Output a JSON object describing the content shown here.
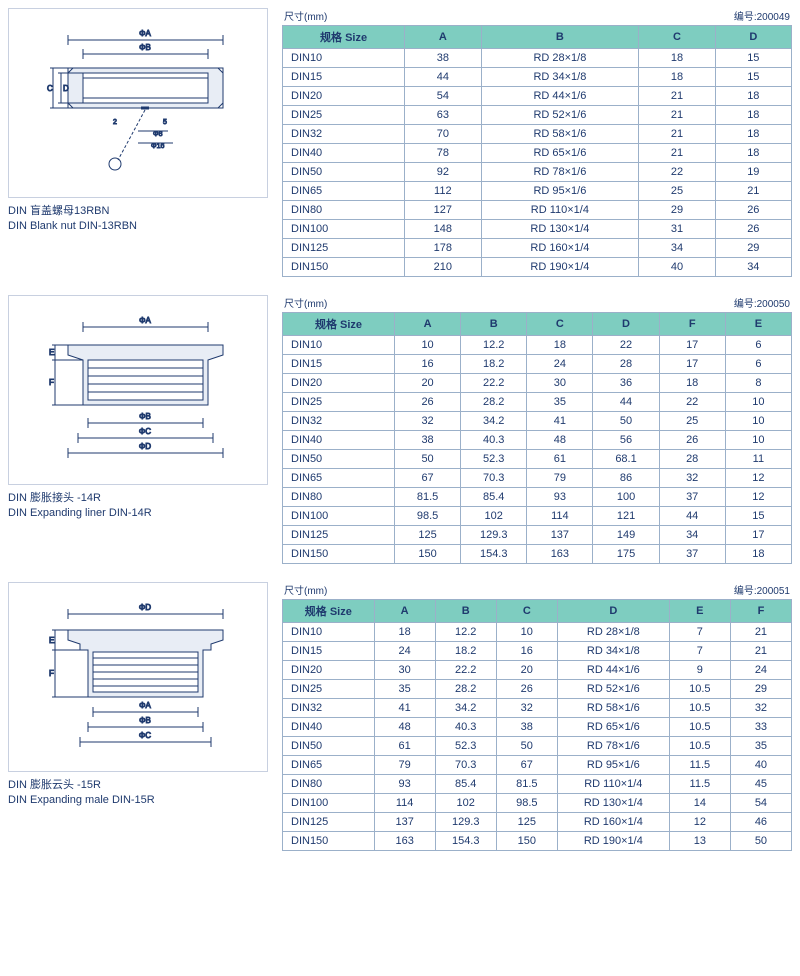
{
  "sections": [
    {
      "caption_zh": "DIN 盲盖螺母13RBN",
      "caption_en": "DIN Blank nut DIN-13RBN",
      "dim_label": "尺寸(mm)",
      "code_label": "编号:200049",
      "columns": [
        "规格 Size",
        "A",
        "B",
        "C",
        "D"
      ],
      "col_widths": [
        "24%",
        "15%",
        "31%",
        "15%",
        "15%"
      ],
      "rows": [
        [
          "DIN10",
          "38",
          "RD 28×1/8",
          "18",
          "15"
        ],
        [
          "DIN15",
          "44",
          "RD 34×1/8",
          "18",
          "15"
        ],
        [
          "DIN20",
          "54",
          "RD 44×1/6",
          "21",
          "18"
        ],
        [
          "DIN25",
          "63",
          "RD 52×1/6",
          "21",
          "18"
        ],
        [
          "DIN32",
          "70",
          "RD 58×1/6",
          "21",
          "18"
        ],
        [
          "DIN40",
          "78",
          "RD 65×1/6",
          "21",
          "18"
        ],
        [
          "DIN50",
          "92",
          "RD 78×1/6",
          "22",
          "19"
        ],
        [
          "DIN65",
          "112",
          "RD 95×1/6",
          "25",
          "21"
        ],
        [
          "DIN80",
          "127",
          "RD 110×1/4",
          "29",
          "26"
        ],
        [
          "DIN100",
          "148",
          "RD 130×1/4",
          "31",
          "26"
        ],
        [
          "DIN125",
          "178",
          "RD 160×1/4",
          "34",
          "29"
        ],
        [
          "DIN150",
          "210",
          "RD 190×1/4",
          "40",
          "34"
        ]
      ]
    },
    {
      "caption_zh": "DIN 膨胀接头 -14R",
      "caption_en": "DIN Expanding liner DIN-14R",
      "dim_label": "尺寸(mm)",
      "code_label": "编号:200050",
      "columns": [
        "规格 Size",
        "A",
        "B",
        "C",
        "D",
        "F",
        "E"
      ],
      "col_widths": [
        "22%",
        "13%",
        "13%",
        "13%",
        "13%",
        "13%",
        "13%"
      ],
      "rows": [
        [
          "DIN10",
          "10",
          "12.2",
          "18",
          "22",
          "17",
          "6"
        ],
        [
          "DIN15",
          "16",
          "18.2",
          "24",
          "28",
          "17",
          "6"
        ],
        [
          "DIN20",
          "20",
          "22.2",
          "30",
          "36",
          "18",
          "8"
        ],
        [
          "DIN25",
          "26",
          "28.2",
          "35",
          "44",
          "22",
          "10"
        ],
        [
          "DIN32",
          "32",
          "34.2",
          "41",
          "50",
          "25",
          "10"
        ],
        [
          "DIN40",
          "38",
          "40.3",
          "48",
          "56",
          "26",
          "10"
        ],
        [
          "DIN50",
          "50",
          "52.3",
          "61",
          "68.1",
          "28",
          "11"
        ],
        [
          "DIN65",
          "67",
          "70.3",
          "79",
          "86",
          "32",
          "12"
        ],
        [
          "DIN80",
          "81.5",
          "85.4",
          "93",
          "100",
          "37",
          "12"
        ],
        [
          "DIN100",
          "98.5",
          "102",
          "114",
          "121",
          "44",
          "15"
        ],
        [
          "DIN125",
          "125",
          "129.3",
          "137",
          "149",
          "34",
          "17"
        ],
        [
          "DIN150",
          "150",
          "154.3",
          "163",
          "175",
          "37",
          "18"
        ]
      ]
    },
    {
      "caption_zh": "DIN 膨胀云头 -15R",
      "caption_en": "DIN Expanding male DIN-15R",
      "dim_label": "尺寸(mm)",
      "code_label": "编号:200051",
      "columns": [
        "规格 Size",
        "A",
        "B",
        "C",
        "D",
        "E",
        "F"
      ],
      "col_widths": [
        "18%",
        "12%",
        "12%",
        "12%",
        "22%",
        "12%",
        "12%"
      ],
      "rows": [
        [
          "DIN10",
          "18",
          "12.2",
          "10",
          "RD 28×1/8",
          "7",
          "21"
        ],
        [
          "DIN15",
          "24",
          "18.2",
          "16",
          "RD 34×1/8",
          "7",
          "21"
        ],
        [
          "DIN20",
          "30",
          "22.2",
          "20",
          "RD 44×1/6",
          "9",
          "24"
        ],
        [
          "DIN25",
          "35",
          "28.2",
          "26",
          "RD 52×1/6",
          "10.5",
          "29"
        ],
        [
          "DIN32",
          "41",
          "34.2",
          "32",
          "RD 58×1/6",
          "10.5",
          "32"
        ],
        [
          "DIN40",
          "48",
          "40.3",
          "38",
          "RD 65×1/6",
          "10.5",
          "33"
        ],
        [
          "DIN50",
          "61",
          "52.3",
          "50",
          "RD 78×1/6",
          "10.5",
          "35"
        ],
        [
          "DIN65",
          "79",
          "70.3",
          "67",
          "RD 95×1/6",
          "11.5",
          "40"
        ],
        [
          "DIN80",
          "93",
          "85.4",
          "81.5",
          "RD 110×1/4",
          "11.5",
          "45"
        ],
        [
          "DIN100",
          "114",
          "102",
          "98.5",
          "RD 130×1/4",
          "14",
          "54"
        ],
        [
          "DIN125",
          "137",
          "129.3",
          "125",
          "RD 160×1/4",
          "12",
          "46"
        ],
        [
          "DIN150",
          "163",
          "154.3",
          "150",
          "RD 190×1/4",
          "13",
          "50"
        ]
      ]
    }
  ],
  "diagram_color": "#1f3a6e",
  "table_header_bg": "#7ecdc0",
  "border_color": "#9bb0c9",
  "dim_labels": {
    "phiA": "ΦA",
    "phiB": "ΦB",
    "phiC": "ΦC",
    "phiD": "ΦD"
  }
}
